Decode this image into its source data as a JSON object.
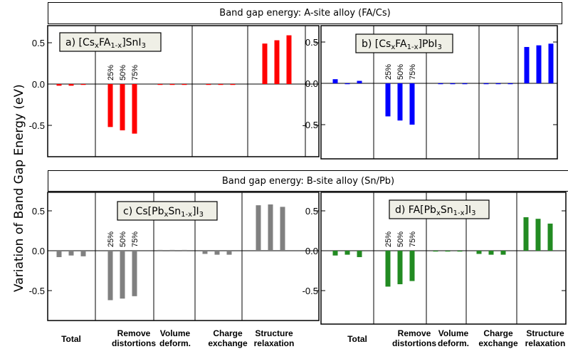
{
  "banner_a": "Band gap energy: A-site alloy (FA/Cs)",
  "banner_b": "Band gap energy: B-site alloy (Sn/Pb)",
  "y_axis_label": "Variation of Band Gap Energy (eV)",
  "categories": [
    "Total",
    "Remove distortions",
    "Volume deform.",
    "Charge exchange",
    "Structure relaxation"
  ],
  "category_lines": [
    [
      "Total"
    ],
    [
      "Remove",
      "distortions"
    ],
    [
      "Volume",
      "deform."
    ],
    [
      "Charge",
      "exchange"
    ],
    [
      "Structure",
      "relaxation"
    ]
  ],
  "composition_labels": [
    "25%",
    "50%",
    "75%"
  ],
  "y_ticks": [
    "0.5",
    "0.0",
    "-0.5"
  ],
  "chart_data": [
    {
      "type": "bar",
      "title": "a) [CsxFA1-x]SnI3",
      "title_parts": {
        "pre": "a) [Cs",
        "sub1": "x",
        "mid1": "FA",
        "sub2": "1-x",
        "mid2": "]SnI",
        "sub3": "3",
        "post": ""
      },
      "color": "#ff0000",
      "categories": [
        "Total",
        "Remove distortions",
        "Volume deform.",
        "Charge exchange",
        "Structure relaxation"
      ],
      "series": [
        {
          "values": [
            -0.02,
            -0.52,
            0.0,
            0.0,
            0.49
          ]
        },
        {
          "values": [
            -0.02,
            -0.56,
            0.0,
            0.0,
            0.53
          ]
        },
        {
          "values": [
            -0.01,
            -0.6,
            0.0,
            0.0,
            0.59
          ]
        }
      ],
      "ylim": [
        -0.88,
        0.68
      ],
      "yticks": [
        0.5,
        0.0,
        -0.5
      ]
    },
    {
      "type": "bar",
      "title": "b) [CsxFA1-x]PbI3",
      "title_parts": {
        "pre": "b) [Cs",
        "sub1": "x",
        "mid1": "FA",
        "sub2": "1-x",
        "mid2": "]PbI",
        "sub3": "3",
        "post": ""
      },
      "color": "#0000ff",
      "categories": [
        "Total",
        "Remove distortions",
        "Volume deform.",
        "Charge exchange",
        "Structure relaxation"
      ],
      "series": [
        {
          "values": [
            0.05,
            -0.4,
            0.0,
            0.0,
            0.44
          ]
        },
        {
          "values": [
            0.0,
            -0.45,
            0.0,
            0.0,
            0.46
          ]
        },
        {
          "values": [
            0.03,
            -0.5,
            0.0,
            0.0,
            0.48
          ]
        }
      ],
      "ylim": [
        -0.88,
        0.68
      ],
      "yticks": [
        0.5,
        0.0,
        -0.5
      ]
    },
    {
      "type": "bar",
      "title": "c) Cs[PbxSn1-x]I3",
      "title_parts": {
        "pre": "c) Cs[Pb",
        "sub1": "x",
        "mid1": "Sn",
        "sub2": "1-x",
        "mid2": "]I",
        "sub3": "3",
        "post": ""
      },
      "color": "#808080",
      "categories": [
        "Total",
        "Remove distortions",
        "Volume deform.",
        "Charge exchange",
        "Structure relaxation"
      ],
      "series": [
        {
          "values": [
            -0.08,
            -0.62,
            0.01,
            -0.04,
            0.57
          ]
        },
        {
          "values": [
            -0.06,
            -0.6,
            0.01,
            -0.05,
            0.58
          ]
        },
        {
          "values": [
            -0.07,
            -0.57,
            0.01,
            -0.05,
            0.55
          ]
        }
      ],
      "ylim": [
        -0.75,
        0.72
      ],
      "yticks": [
        0.5,
        0.0,
        -0.5
      ]
    },
    {
      "type": "bar",
      "title": "d) FA[PbxSn1-x]I3",
      "title_parts": {
        "pre": "d) FA[Pb",
        "sub1": "x",
        "mid1": "Sn",
        "sub2": "1-x",
        "mid2": "]I",
        "sub3": "3",
        "post": ""
      },
      "color": "#228b22",
      "categories": [
        "Total",
        "Remove distortions",
        "Volume deform.",
        "Charge exchange",
        "Structure relaxation"
      ],
      "series": [
        {
          "values": [
            -0.06,
            -0.45,
            0.0,
            -0.04,
            0.42
          ]
        },
        {
          "values": [
            -0.05,
            -0.42,
            0.0,
            -0.05,
            0.4
          ]
        },
        {
          "values": [
            -0.08,
            -0.38,
            0.0,
            -0.05,
            0.34
          ]
        }
      ],
      "ylim": [
        -0.75,
        0.72
      ],
      "yticks": [
        0.5,
        0.0,
        -0.5
      ]
    }
  ]
}
